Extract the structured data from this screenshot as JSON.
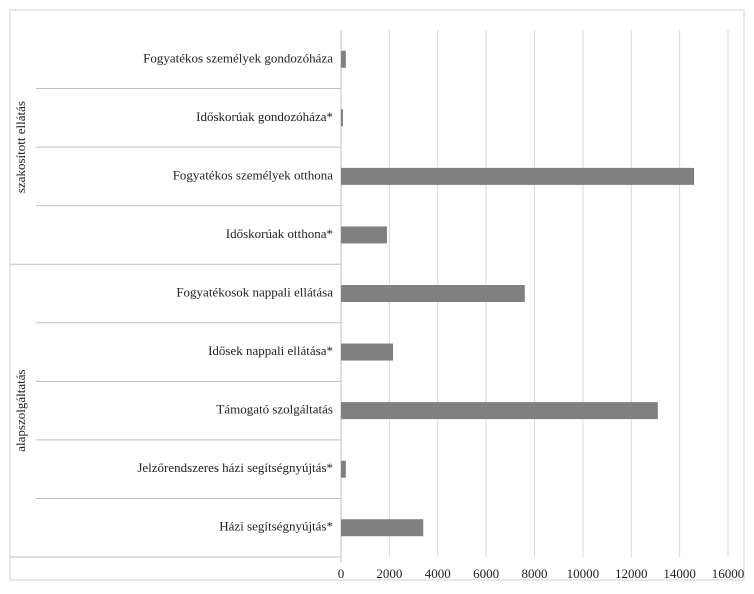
{
  "chart_data": {
    "type": "bar",
    "orientation": "horizontal",
    "color": "#808080",
    "groups": [
      {
        "name": "szakosított ellátás",
        "categories": [
          "Fogyatékos személyek gondozóháza",
          "Időskorúak gondozóháza*",
          "Fogyatékos személyek otthona",
          "Időskorúak otthona*"
        ],
        "values": [
          200,
          80,
          14600,
          1900
        ]
      },
      {
        "name": "alapszolgáltatás",
        "categories": [
          "Fogyatékosok nappali ellátása",
          "Idősek nappali ellátása*",
          "Támogató szolgáltatás",
          "Jelzőrendszeres házi segítségnyújtás*",
          "Házi segítségnyújtás*"
        ],
        "values": [
          7600,
          2150,
          13100,
          200,
          3400
        ]
      }
    ],
    "xlim": [
      0,
      16000
    ],
    "xticks": [
      0,
      2000,
      4000,
      6000,
      8000,
      10000,
      12000,
      14000,
      16000
    ],
    "grid": true
  }
}
